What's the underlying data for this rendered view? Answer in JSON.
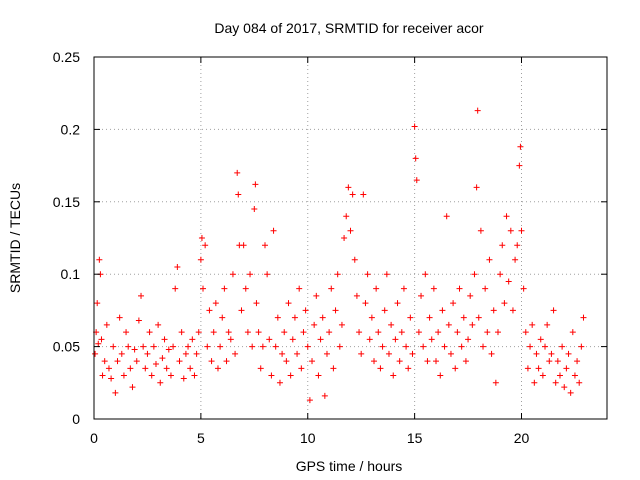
{
  "chart_data": {
    "type": "scatter",
    "title": "Day 084 of 2017, SRMTID for receiver acor",
    "xlabel": "GPS time / hours",
    "ylabel": "SRMTID / TECUs",
    "xlim": [
      0,
      24
    ],
    "ylim": [
      0,
      0.25
    ],
    "xticks": [
      0,
      5,
      10,
      15,
      20
    ],
    "xtick_labels": [
      "0",
      "5",
      "10",
      "15",
      "20"
    ],
    "yticks": [
      0,
      0.05,
      0.1,
      0.15,
      0.2,
      0.25
    ],
    "ytick_labels": [
      "0",
      "0.05",
      "0.1",
      "0.15",
      "0.2",
      "0.25"
    ],
    "grid": true,
    "marker": "+",
    "color": "#ff0000",
    "series": [
      {
        "name": "SRMTID",
        "points": [
          [
            0.05,
            0.045
          ],
          [
            0.1,
            0.06
          ],
          [
            0.15,
            0.08
          ],
          [
            0.2,
            0.052
          ],
          [
            0.25,
            0.11
          ],
          [
            0.3,
            0.1
          ],
          [
            0.35,
            0.055
          ],
          [
            0.4,
            0.03
          ],
          [
            0.5,
            0.04
          ],
          [
            0.6,
            0.065
          ],
          [
            0.7,
            0.035
          ],
          [
            0.8,
            0.028
          ],
          [
            0.9,
            0.05
          ],
          [
            1.0,
            0.018
          ],
          [
            1.1,
            0.04
          ],
          [
            1.2,
            0.07
          ],
          [
            1.3,
            0.045
          ],
          [
            1.4,
            0.03
          ],
          [
            1.5,
            0.06
          ],
          [
            1.6,
            0.05
          ],
          [
            1.7,
            0.035
          ],
          [
            1.8,
            0.022
          ],
          [
            1.9,
            0.048
          ],
          [
            2.0,
            0.04
          ],
          [
            2.1,
            0.068
          ],
          [
            2.2,
            0.085
          ],
          [
            2.3,
            0.05
          ],
          [
            2.4,
            0.035
          ],
          [
            2.5,
            0.045
          ],
          [
            2.6,
            0.06
          ],
          [
            2.7,
            0.03
          ],
          [
            2.8,
            0.05
          ],
          [
            2.9,
            0.038
          ],
          [
            3.0,
            0.065
          ],
          [
            3.1,
            0.025
          ],
          [
            3.2,
            0.042
          ],
          [
            3.3,
            0.055
          ],
          [
            3.4,
            0.035
          ],
          [
            3.5,
            0.048
          ],
          [
            3.6,
            0.03
          ],
          [
            3.7,
            0.05
          ],
          [
            3.8,
            0.09
          ],
          [
            3.9,
            0.105
          ],
          [
            4.0,
            0.04
          ],
          [
            4.1,
            0.06
          ],
          [
            4.2,
            0.028
          ],
          [
            4.3,
            0.045
          ],
          [
            4.4,
            0.05
          ],
          [
            4.5,
            0.035
          ],
          [
            4.6,
            0.055
          ],
          [
            4.7,
            0.03
          ],
          [
            4.8,
            0.045
          ],
          [
            4.9,
            0.06
          ],
          [
            5.0,
            0.11
          ],
          [
            5.05,
            0.125
          ],
          [
            5.1,
            0.09
          ],
          [
            5.2,
            0.12
          ],
          [
            5.3,
            0.05
          ],
          [
            5.4,
            0.075
          ],
          [
            5.5,
            0.04
          ],
          [
            5.6,
            0.06
          ],
          [
            5.7,
            0.08
          ],
          [
            5.8,
            0.035
          ],
          [
            5.9,
            0.05
          ],
          [
            6.0,
            0.07
          ],
          [
            6.1,
            0.09
          ],
          [
            6.2,
            0.04
          ],
          [
            6.3,
            0.06
          ],
          [
            6.4,
            0.055
          ],
          [
            6.5,
            0.1
          ],
          [
            6.6,
            0.045
          ],
          [
            6.7,
            0.17
          ],
          [
            6.75,
            0.155
          ],
          [
            6.8,
            0.12
          ],
          [
            6.9,
            0.075
          ],
          [
            7.0,
            0.12
          ],
          [
            7.1,
            0.09
          ],
          [
            7.2,
            0.06
          ],
          [
            7.3,
            0.1
          ],
          [
            7.4,
            0.05
          ],
          [
            7.5,
            0.145
          ],
          [
            7.55,
            0.162
          ],
          [
            7.6,
            0.08
          ],
          [
            7.7,
            0.06
          ],
          [
            7.8,
            0.035
          ],
          [
            7.9,
            0.05
          ],
          [
            8.0,
            0.12
          ],
          [
            8.1,
            0.1
          ],
          [
            8.2,
            0.055
          ],
          [
            8.3,
            0.03
          ],
          [
            8.4,
            0.13
          ],
          [
            8.5,
            0.05
          ],
          [
            8.6,
            0.07
          ],
          [
            8.7,
            0.025
          ],
          [
            8.8,
            0.045
          ],
          [
            8.9,
            0.06
          ],
          [
            9.0,
            0.04
          ],
          [
            9.1,
            0.08
          ],
          [
            9.2,
            0.03
          ],
          [
            9.3,
            0.055
          ],
          [
            9.4,
            0.07
          ],
          [
            9.5,
            0.045
          ],
          [
            9.6,
            0.09
          ],
          [
            9.7,
            0.035
          ],
          [
            9.8,
            0.06
          ],
          [
            9.9,
            0.075
          ],
          [
            10.0,
            0.05
          ],
          [
            10.1,
            0.013
          ],
          [
            10.2,
            0.04
          ],
          [
            10.3,
            0.065
          ],
          [
            10.4,
            0.085
          ],
          [
            10.5,
            0.03
          ],
          [
            10.6,
            0.055
          ],
          [
            10.7,
            0.07
          ],
          [
            10.8,
            0.016
          ],
          [
            10.9,
            0.045
          ],
          [
            11.0,
            0.06
          ],
          [
            11.1,
            0.09
          ],
          [
            11.2,
            0.035
          ],
          [
            11.3,
            0.075
          ],
          [
            11.4,
            0.1
          ],
          [
            11.5,
            0.05
          ],
          [
            11.6,
            0.065
          ],
          [
            11.7,
            0.125
          ],
          [
            11.8,
            0.14
          ],
          [
            11.9,
            0.16
          ],
          [
            12.0,
            0.13
          ],
          [
            12.1,
            0.155
          ],
          [
            12.2,
            0.11
          ],
          [
            12.3,
            0.085
          ],
          [
            12.4,
            0.06
          ],
          [
            12.5,
            0.045
          ],
          [
            12.6,
            0.155
          ],
          [
            12.7,
            0.08
          ],
          [
            12.8,
            0.1
          ],
          [
            12.9,
            0.055
          ],
          [
            13.0,
            0.07
          ],
          [
            13.1,
            0.04
          ],
          [
            13.2,
            0.09
          ],
          [
            13.3,
            0.06
          ],
          [
            13.4,
            0.035
          ],
          [
            13.5,
            0.05
          ],
          [
            13.6,
            0.075
          ],
          [
            13.7,
            0.1
          ],
          [
            13.8,
            0.045
          ],
          [
            13.9,
            0.065
          ],
          [
            14.0,
            0.03
          ],
          [
            14.1,
            0.055
          ],
          [
            14.2,
            0.08
          ],
          [
            14.3,
            0.04
          ],
          [
            14.4,
            0.06
          ],
          [
            14.5,
            0.09
          ],
          [
            14.6,
            0.05
          ],
          [
            14.7,
            0.035
          ],
          [
            14.8,
            0.07
          ],
          [
            14.9,
            0.045
          ],
          [
            15.0,
            0.202
          ],
          [
            15.05,
            0.18
          ],
          [
            15.1,
            0.165
          ],
          [
            15.2,
            0.06
          ],
          [
            15.3,
            0.085
          ],
          [
            15.4,
            0.05
          ],
          [
            15.5,
            0.1
          ],
          [
            15.6,
            0.04
          ],
          [
            15.7,
            0.07
          ],
          [
            15.8,
            0.055
          ],
          [
            15.9,
            0.09
          ],
          [
            16.0,
            0.04
          ],
          [
            16.1,
            0.06
          ],
          [
            16.2,
            0.03
          ],
          [
            16.3,
            0.075
          ],
          [
            16.4,
            0.05
          ],
          [
            16.5,
            0.14
          ],
          [
            16.6,
            0.065
          ],
          [
            16.7,
            0.045
          ],
          [
            16.8,
            0.08
          ],
          [
            16.9,
            0.035
          ],
          [
            17.0,
            0.06
          ],
          [
            17.1,
            0.09
          ],
          [
            17.2,
            0.05
          ],
          [
            17.3,
            0.07
          ],
          [
            17.4,
            0.04
          ],
          [
            17.5,
            0.055
          ],
          [
            17.6,
            0.085
          ],
          [
            17.7,
            0.065
          ],
          [
            17.8,
            0.1
          ],
          [
            17.9,
            0.16
          ],
          [
            17.95,
            0.213
          ],
          [
            18.0,
            0.07
          ],
          [
            18.1,
            0.13
          ],
          [
            18.2,
            0.05
          ],
          [
            18.3,
            0.09
          ],
          [
            18.4,
            0.06
          ],
          [
            18.5,
            0.11
          ],
          [
            18.6,
            0.045
          ],
          [
            18.7,
            0.075
          ],
          [
            18.8,
            0.025
          ],
          [
            18.9,
            0.06
          ],
          [
            19.0,
            0.1
          ],
          [
            19.1,
            0.12
          ],
          [
            19.2,
            0.08
          ],
          [
            19.3,
            0.14
          ],
          [
            19.4,
            0.095
          ],
          [
            19.5,
            0.13
          ],
          [
            19.6,
            0.075
          ],
          [
            19.7,
            0.11
          ],
          [
            19.8,
            0.12
          ],
          [
            19.9,
            0.175
          ],
          [
            19.95,
            0.188
          ],
          [
            20.0,
            0.13
          ],
          [
            20.1,
            0.09
          ],
          [
            20.2,
            0.06
          ],
          [
            20.3,
            0.035
          ],
          [
            20.4,
            0.05
          ],
          [
            20.5,
            0.065
          ],
          [
            20.6,
            0.025
          ],
          [
            20.7,
            0.045
          ],
          [
            20.8,
            0.035
          ],
          [
            20.9,
            0.055
          ],
          [
            21.0,
            0.03
          ],
          [
            21.1,
            0.05
          ],
          [
            21.2,
            0.065
          ],
          [
            21.3,
            0.04
          ],
          [
            21.4,
            0.045
          ],
          [
            21.5,
            0.075
          ],
          [
            21.6,
            0.025
          ],
          [
            21.7,
            0.04
          ],
          [
            21.8,
            0.03
          ],
          [
            21.9,
            0.05
          ],
          [
            22.0,
            0.022
          ],
          [
            22.1,
            0.035
          ],
          [
            22.2,
            0.045
          ],
          [
            22.3,
            0.018
          ],
          [
            22.4,
            0.06
          ],
          [
            22.5,
            0.03
          ],
          [
            22.6,
            0.04
          ],
          [
            22.7,
            0.025
          ],
          [
            22.8,
            0.05
          ],
          [
            22.9,
            0.07
          ]
        ]
      }
    ]
  }
}
